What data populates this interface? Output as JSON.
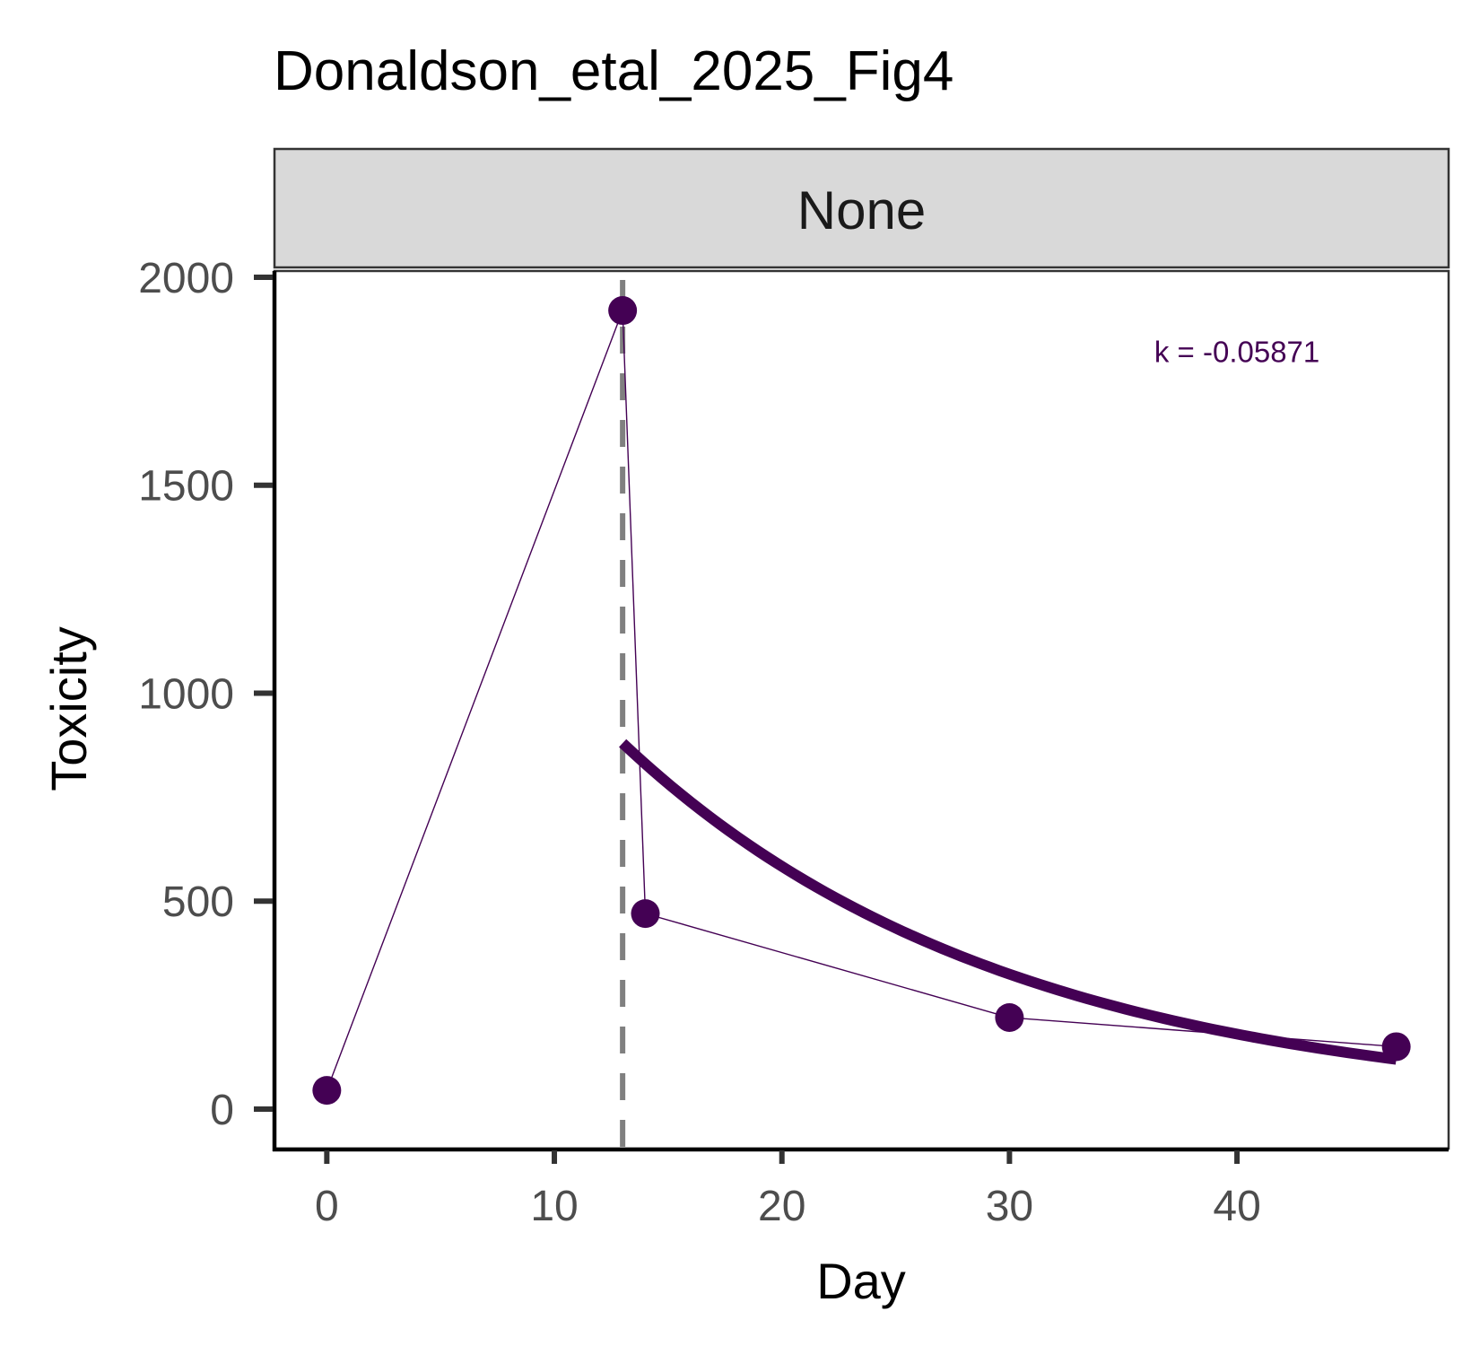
{
  "chart_data": {
    "type": "line",
    "title": "Donaldson_etal_2025_Fig4",
    "facet_label": "None",
    "xlabel": "Day",
    "ylabel": "Toxicity",
    "xlim": [
      -2.3,
      49.3
    ],
    "ylim": [
      -95,
      2015
    ],
    "x_ticks": [
      0,
      10,
      20,
      30,
      40
    ],
    "x_tick_labels": [
      "0",
      "10",
      "20",
      "30",
      "40"
    ],
    "y_ticks": [
      0,
      500,
      1000,
      1500,
      2000
    ],
    "y_tick_labels": [
      "0",
      "500",
      "1000",
      "1500",
      "2000"
    ],
    "grid": false,
    "legend": "none",
    "series": [
      {
        "kind": "observed",
        "color": "#440154",
        "x": [
          0,
          13,
          14,
          30,
          47
        ],
        "y": [
          45,
          1920,
          470,
          220,
          150
        ]
      },
      {
        "kind": "fit",
        "model": "exponential decay",
        "color": "#440154",
        "x_start": 13,
        "x_end": 47,
        "y0": 880,
        "k": -0.05871
      }
    ],
    "reference_line": {
      "x": 13,
      "style": "dashed",
      "color": "#808080"
    },
    "annotations": [
      {
        "text": "k = -0.05871",
        "x": 40,
        "y": 1820,
        "color": "#440154"
      }
    ]
  }
}
